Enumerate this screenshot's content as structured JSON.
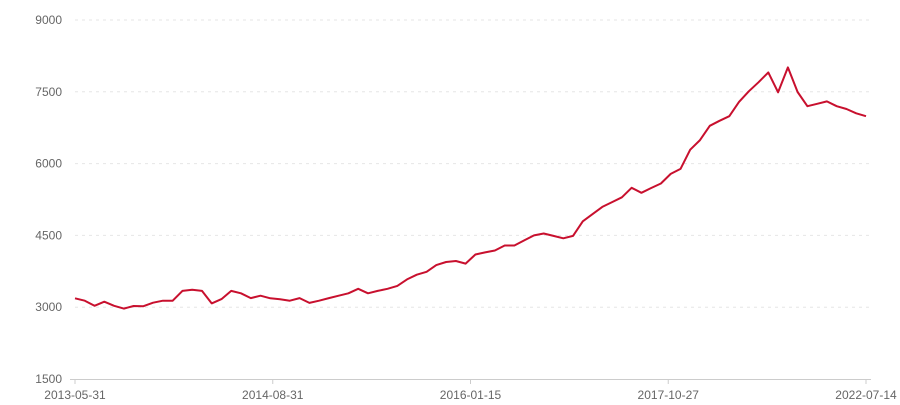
{
  "chart_data": {
    "type": "line",
    "title": "",
    "xlabel": "",
    "ylabel": "",
    "ylim": [
      1500,
      9000
    ],
    "yticks": [
      1500,
      3000,
      4500,
      6000,
      7500,
      9000
    ],
    "ytick_labels": [
      "1500",
      "3000",
      "4500",
      "6000",
      "7500",
      "9000"
    ],
    "xtick_labels": [
      "2013-05-31",
      "2014-08-31",
      "2016-01-15",
      "2017-10-27",
      "2022-07-14"
    ],
    "grid": true,
    "color": "#c8102e",
    "series": [
      {
        "values": [
          3185,
          3135,
          3030,
          3115,
          3030,
          2970,
          3025,
          3020,
          3095,
          3135,
          3135,
          3340,
          3365,
          3340,
          3080,
          3170,
          3340,
          3290,
          3190,
          3240,
          3185,
          3165,
          3135,
          3190,
          3090,
          3135,
          3190,
          3240,
          3290,
          3385,
          3290,
          3340,
          3385,
          3445,
          3580,
          3680,
          3740,
          3880,
          3945,
          3965,
          3910,
          4100,
          4145,
          4185,
          4290,
          4290,
          4395,
          4500,
          4540,
          4490,
          4440,
          4490,
          4795,
          4945,
          5095,
          5195,
          5295,
          5495,
          5390,
          5490,
          5585,
          5785,
          5890,
          6290,
          6490,
          6790,
          6895,
          6990,
          7290,
          7510,
          7700,
          7905,
          7490,
          8010,
          7495,
          7200,
          7250,
          7300,
          7200,
          7140,
          7050,
          6990
        ]
      }
    ]
  }
}
